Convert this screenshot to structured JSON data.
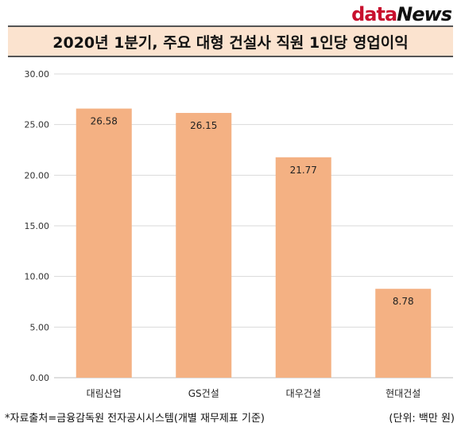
{
  "brand": {
    "part1": "data",
    "part2": "News"
  },
  "chart_data": {
    "type": "bar",
    "title": "2020년 1분기, 주요 대형 건설사 직원 1인당 영업이익",
    "categories": [
      "대림산업",
      "GS건설",
      "대우건설",
      "현대건설"
    ],
    "values": [
      26.58,
      26.15,
      21.77,
      8.78
    ],
    "value_labels": [
      "26.58",
      "26.15",
      "21.77",
      "8.78"
    ],
    "ylim": [
      0,
      30
    ],
    "yticks": [
      "0.00",
      "5.00",
      "10.00",
      "15.00",
      "20.00",
      "25.00",
      "30.00"
    ],
    "grid": true,
    "bar_color": "#f4b183"
  },
  "footer": {
    "source": "*자료출처=금융감독원 전자공시시스템(개별 재무제표 기준)",
    "unit": "(단위: 백만 원)"
  }
}
